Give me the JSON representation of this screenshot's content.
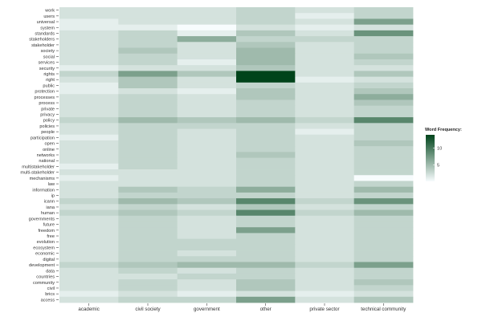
{
  "chart_data": {
    "type": "heatmap",
    "title": "",
    "xlabel": "",
    "ylabel": "",
    "x_categories": [
      "academic",
      "civil society",
      "government",
      "other",
      "private sector",
      "technical community"
    ],
    "y_categories": [
      "work",
      "users",
      "universal",
      "system",
      "standards",
      "stakeholders",
      "stakeholder",
      "society",
      "social",
      "services",
      "security",
      "rights",
      "right",
      "public",
      "protection",
      "processes",
      "process",
      "private",
      "privacy",
      "policy",
      "policies",
      "people",
      "participation",
      "open",
      "online",
      "networks",
      "national",
      "multistakeholder",
      "multi-stakeholder",
      "mechanisms",
      "law",
      "information",
      "ip",
      "icann",
      "iana",
      "human",
      "governments",
      "future",
      "freedom",
      "free",
      "evolution",
      "ecosystem",
      "economic",
      "digital",
      "development",
      "data",
      "countries",
      "community",
      "civil",
      "brics",
      "access"
    ],
    "values": [
      [
        2,
        2,
        2,
        3,
        2,
        3
      ],
      [
        2,
        2,
        2,
        3,
        1,
        3
      ],
      [
        1,
        2,
        2,
        3,
        2,
        7
      ],
      [
        1,
        1,
        0,
        2,
        1,
        2
      ],
      [
        2,
        3,
        1,
        4,
        2,
        8
      ],
      [
        2,
        3,
        6,
        3,
        3,
        3
      ],
      [
        2,
        3,
        2,
        4,
        2,
        3
      ],
      [
        2,
        4,
        2,
        5,
        2,
        3
      ],
      [
        2,
        3,
        2,
        5,
        2,
        4
      ],
      [
        2,
        3,
        1,
        5,
        2,
        3
      ],
      [
        1,
        2,
        2,
        4,
        2,
        2
      ],
      [
        3,
        7,
        4,
        14,
        2,
        4
      ],
      [
        2,
        4,
        2,
        14,
        1,
        2
      ],
      [
        1,
        4,
        2,
        3,
        2,
        3
      ],
      [
        1,
        2,
        1,
        4,
        2,
        4
      ],
      [
        2,
        3,
        2,
        4,
        2,
        6
      ],
      [
        2,
        3,
        2,
        3,
        2,
        4
      ],
      [
        2,
        3,
        2,
        3,
        2,
        3
      ],
      [
        2,
        3,
        2,
        3,
        2,
        3
      ],
      [
        3,
        5,
        4,
        5,
        3,
        9
      ],
      [
        2,
        3,
        3,
        3,
        2,
        3
      ],
      [
        2,
        3,
        2,
        3,
        1,
        3
      ],
      [
        1,
        3,
        2,
        3,
        2,
        3
      ],
      [
        2,
        3,
        2,
        3,
        2,
        4
      ],
      [
        2,
        3,
        2,
        3,
        2,
        3
      ],
      [
        2,
        3,
        2,
        4,
        2,
        3
      ],
      [
        2,
        3,
        2,
        3,
        2,
        3
      ],
      [
        1,
        3,
        2,
        3,
        2,
        3
      ],
      [
        2,
        2,
        2,
        3,
        2,
        3
      ],
      [
        1,
        2,
        2,
        3,
        2,
        0
      ],
      [
        2,
        2,
        2,
        3,
        2,
        3
      ],
      [
        2,
        4,
        3,
        6,
        2,
        5
      ],
      [
        2,
        3,
        3,
        3,
        2,
        3
      ],
      [
        3,
        5,
        4,
        9,
        3,
        8
      ],
      [
        2,
        3,
        2,
        4,
        2,
        3
      ],
      [
        3,
        4,
        3,
        9,
        3,
        5
      ],
      [
        2,
        3,
        2,
        3,
        2,
        3
      ],
      [
        2,
        3,
        2,
        3,
        2,
        3
      ],
      [
        2,
        3,
        2,
        7,
        2,
        3
      ],
      [
        2,
        3,
        2,
        3,
        2,
        3
      ],
      [
        2,
        3,
        3,
        3,
        2,
        3
      ],
      [
        2,
        3,
        3,
        3,
        2,
        3
      ],
      [
        2,
        3,
        2,
        3,
        2,
        3
      ],
      [
        2,
        3,
        3,
        3,
        2,
        3
      ],
      [
        3,
        4,
        5,
        5,
        3,
        7
      ],
      [
        2,
        3,
        2,
        3,
        2,
        3
      ],
      [
        2,
        2,
        3,
        3,
        2,
        3
      ],
      [
        2,
        3,
        2,
        4,
        2,
        4
      ],
      [
        2,
        3,
        2,
        4,
        2,
        3
      ],
      [
        1,
        2,
        1,
        2,
        1,
        2
      ],
      [
        2,
        3,
        3,
        7,
        2,
        4
      ]
    ],
    "value_range": [
      0,
      14
    ],
    "colors": {
      "low": "#f7fcfd",
      "high": "#00441b"
    },
    "legend": {
      "title": "Word Frequency:",
      "ticks": [
        5,
        10
      ],
      "placement": "right"
    },
    "grid": false
  }
}
